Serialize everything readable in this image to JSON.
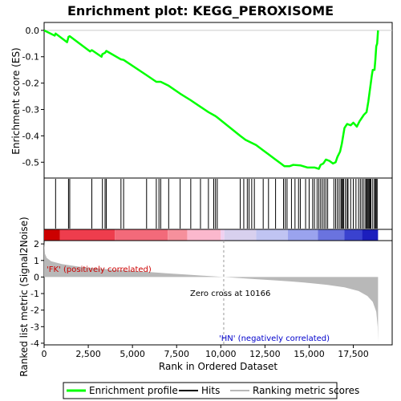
{
  "chart_data": {
    "type": "line",
    "title": "Enrichment plot: KEGG_PEROXISOME",
    "xlabel": "Rank in Ordered Dataset",
    "ylabel_top": "Enrichment score (ES)",
    "ylabel_bottom": "Ranked list metric (Signal2Noise)",
    "x_ticks": [
      0,
      2500,
      5000,
      7500,
      10000,
      12500,
      15000,
      17500
    ],
    "x_tick_labels": [
      "0",
      "2,500",
      "5,000",
      "7,500",
      "10,000",
      "12,500",
      "15,000",
      "17,500"
    ],
    "xlim": [
      0,
      19700
    ],
    "es_ylim": [
      -0.56,
      0.03
    ],
    "es_ticks": [
      0.0,
      -0.1,
      -0.2,
      -0.3,
      -0.4,
      -0.5
    ],
    "es_tick_labels": [
      "0.0",
      "-0.1",
      "-0.2",
      "-0.3",
      "-0.4",
      "-0.5"
    ],
    "metric_ylim": [
      -4.1,
      2.2
    ],
    "metric_ticks": [
      2,
      1,
      0,
      -1,
      -2,
      -3,
      -4
    ],
    "metric_tick_labels": [
      "2",
      "1",
      "0",
      "-1",
      "-2",
      "-3",
      "-4"
    ],
    "enrichment_profile": [
      [
        0,
        0.0
      ],
      [
        600,
        -0.02
      ],
      [
        650,
        -0.012
      ],
      [
        1300,
        -0.045
      ],
      [
        1380,
        -0.025
      ],
      [
        1450,
        -0.022
      ],
      [
        2600,
        -0.08
      ],
      [
        2700,
        -0.075
      ],
      [
        3250,
        -0.1
      ],
      [
        3300,
        -0.09
      ],
      [
        3450,
        -0.085
      ],
      [
        3520,
        -0.078
      ],
      [
        4350,
        -0.11
      ],
      [
        4500,
        -0.112
      ],
      [
        5800,
        -0.17
      ],
      [
        6350,
        -0.195
      ],
      [
        6600,
        -0.195
      ],
      [
        7050,
        -0.21
      ],
      [
        7700,
        -0.24
      ],
      [
        8300,
        -0.265
      ],
      [
        8850,
        -0.29
      ],
      [
        9300,
        -0.31
      ],
      [
        9700,
        -0.325
      ],
      [
        9800,
        -0.33
      ],
      [
        11100,
        -0.4
      ],
      [
        11400,
        -0.415
      ],
      [
        11700,
        -0.425
      ],
      [
        12000,
        -0.435
      ],
      [
        12400,
        -0.455
      ],
      [
        12700,
        -0.47
      ],
      [
        13100,
        -0.49
      ],
      [
        13400,
        -0.505
      ],
      [
        13600,
        -0.515
      ],
      [
        13900,
        -0.515
      ],
      [
        14100,
        -0.51
      ],
      [
        14500,
        -0.512
      ],
      [
        14900,
        -0.52
      ],
      [
        15300,
        -0.52
      ],
      [
        15550,
        -0.525
      ],
      [
        15650,
        -0.51
      ],
      [
        15800,
        -0.505
      ],
      [
        15950,
        -0.49
      ],
      [
        16150,
        -0.495
      ],
      [
        16350,
        -0.505
      ],
      [
        16500,
        -0.5
      ],
      [
        16600,
        -0.48
      ],
      [
        16750,
        -0.46
      ],
      [
        16850,
        -0.43
      ],
      [
        17000,
        -0.37
      ],
      [
        17150,
        -0.355
      ],
      [
        17350,
        -0.36
      ],
      [
        17500,
        -0.35
      ],
      [
        17700,
        -0.365
      ],
      [
        17850,
        -0.345
      ],
      [
        18000,
        -0.33
      ],
      [
        18100,
        -0.32
      ],
      [
        18250,
        -0.31
      ],
      [
        18350,
        -0.27
      ],
      [
        18450,
        -0.22
      ],
      [
        18550,
        -0.17
      ],
      [
        18600,
        -0.15
      ],
      [
        18700,
        -0.15
      ],
      [
        18750,
        -0.11
      ],
      [
        18800,
        -0.06
      ],
      [
        18850,
        -0.05
      ],
      [
        18900,
        0.0
      ]
    ],
    "hits": [
      650,
      1380,
      1450,
      2700,
      3300,
      3450,
      3520,
      4350,
      4500,
      5800,
      6350,
      6500,
      6600,
      7050,
      7700,
      8300,
      8850,
      9300,
      9600,
      9700,
      9800,
      11100,
      11300,
      11500,
      11600,
      11750,
      11900,
      12400,
      12700,
      13100,
      13550,
      13650,
      13750,
      14000,
      14200,
      14400,
      14500,
      14800,
      15000,
      15200,
      15300,
      15450,
      15550,
      15650,
      15750,
      15850,
      15950,
      16050,
      16400,
      16500,
      16600,
      16700,
      16800,
      16850,
      16900,
      16950,
      17050,
      17150,
      17200,
      17350,
      17500,
      17650,
      17800,
      17900,
      18000,
      18100,
      18200,
      18250,
      18300,
      18350,
      18400,
      18450,
      18500,
      18600,
      18700,
      18750,
      18800,
      18850
    ],
    "metric_curve": [
      [
        0,
        2.1
      ],
      [
        50,
        1.4
      ],
      [
        150,
        1.15
      ],
      [
        400,
        0.95
      ],
      [
        1000,
        0.78
      ],
      [
        2000,
        0.62
      ],
      [
        3000,
        0.52
      ],
      [
        4000,
        0.44
      ],
      [
        5000,
        0.37
      ],
      [
        6000,
        0.3
      ],
      [
        7000,
        0.22
      ],
      [
        8000,
        0.15
      ],
      [
        9000,
        0.08
      ],
      [
        10166,
        0.0
      ],
      [
        11000,
        -0.06
      ],
      [
        12000,
        -0.13
      ],
      [
        13000,
        -0.2
      ],
      [
        14000,
        -0.27
      ],
      [
        15000,
        -0.36
      ],
      [
        16000,
        -0.47
      ],
      [
        17000,
        -0.62
      ],
      [
        17800,
        -0.85
      ],
      [
        18300,
        -1.15
      ],
      [
        18600,
        -1.5
      ],
      [
        18800,
        -2.1
      ],
      [
        18880,
        -3.0
      ],
      [
        18900,
        -3.9
      ]
    ],
    "zero_cross_rank": 10166,
    "annotations": {
      "positive": "'FK' (positively correlated)",
      "negative": "'HN' (negatively correlated)",
      "zero_cross": "Zero cross at 10166"
    },
    "colors": {
      "profile": "#00ff00",
      "hit": "#000000",
      "metric_fill": "#b8b8b8",
      "positive_text": "#cc0000",
      "negative_text": "#0000cc",
      "zero_line": "#999999"
    },
    "heat_gradient": [
      [
        0,
        "#cc0000"
      ],
      [
        900,
        "#d81a28"
      ],
      [
        900,
        "#ee3d4d"
      ],
      [
        4000,
        "#f36a7a"
      ],
      [
        7000,
        "#f6909c"
      ],
      [
        8100,
        "#fbb8cd"
      ],
      [
        10000,
        "#f0d0f0"
      ],
      [
        10200,
        "#d8d0ee"
      ],
      [
        12000,
        "#c0c4f2"
      ],
      [
        13800,
        "#9aa3ee"
      ],
      [
        15500,
        "#6a73df"
      ],
      [
        17000,
        "#3a42cf"
      ],
      [
        18000,
        "#1c1ebd"
      ],
      [
        18900,
        "#0a0aa8"
      ]
    ]
  },
  "legend": {
    "items": [
      {
        "label": "Enrichment profile",
        "color": "#00ff00",
        "kind": "line"
      },
      {
        "label": "Hits",
        "color": "#000000",
        "kind": "line"
      },
      {
        "label": "Ranking metric scores",
        "color": "#b8b8b8",
        "kind": "line"
      }
    ]
  }
}
